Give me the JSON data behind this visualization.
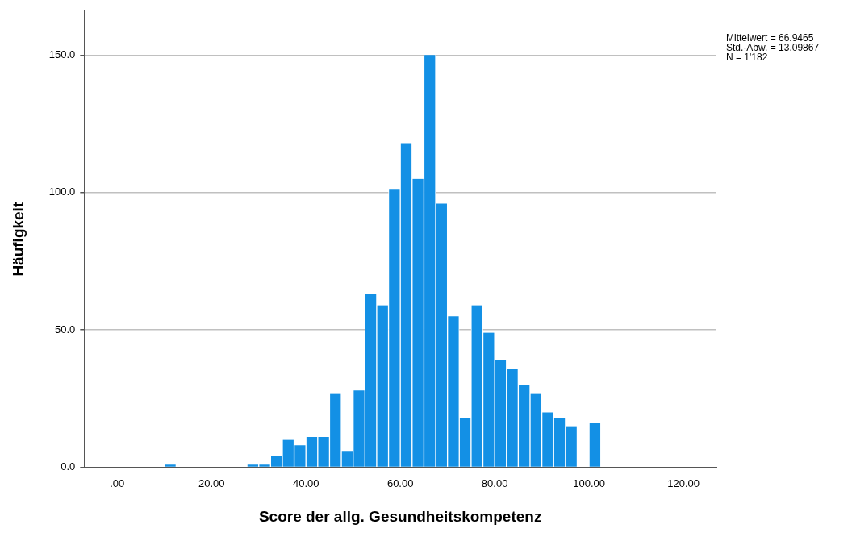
{
  "chart_data": {
    "type": "histogram",
    "xlabel": "Score der allg. Gesundheitskompetenz",
    "ylabel": "Häufigkeit",
    "bins": [
      10,
      12.5,
      15,
      17.5,
      20,
      22.5,
      25,
      27.5,
      30,
      32.5,
      35,
      37.5,
      40,
      42.5,
      45,
      47.5,
      50,
      52.5,
      55,
      57.5,
      60,
      62.5,
      65,
      67.5,
      70,
      72.5,
      75,
      77.5,
      80,
      82.5,
      85,
      87.5,
      90,
      92.5,
      95,
      97.5,
      100,
      102.5
    ],
    "values": [
      1,
      0,
      0,
      0,
      0,
      0,
      0,
      1,
      1,
      4,
      10,
      8,
      11,
      11,
      27,
      6,
      28,
      63,
      59,
      101,
      118,
      105,
      150,
      96,
      55,
      18,
      59,
      49,
      39,
      36,
      30,
      27,
      20,
      18,
      15,
      0,
      16
    ],
    "color": "#1390e5",
    "xlim": [
      -7,
      127
    ],
    "xticks": [
      {
        "value": 0,
        "label": ".00"
      },
      {
        "value": 20,
        "label": "20.00"
      },
      {
        "value": 40,
        "label": "40.00"
      },
      {
        "value": 60,
        "label": "60.00"
      },
      {
        "value": 80,
        "label": "80.00"
      },
      {
        "value": 100,
        "label": "100.00"
      },
      {
        "value": 120,
        "label": "120.00"
      }
    ],
    "ylim": [
      0,
      166
    ],
    "yticks": [
      {
        "value": 0,
        "label": "0.0"
      },
      {
        "value": 50,
        "label": "50.0"
      },
      {
        "value": 100,
        "label": "100.0"
      },
      {
        "value": 150,
        "label": "150.0"
      }
    ],
    "grid": "y",
    "annotations": [
      "Mittelwert = 66.9465",
      "Std.-Abw. = 13.09867",
      "N = 1'182"
    ]
  }
}
